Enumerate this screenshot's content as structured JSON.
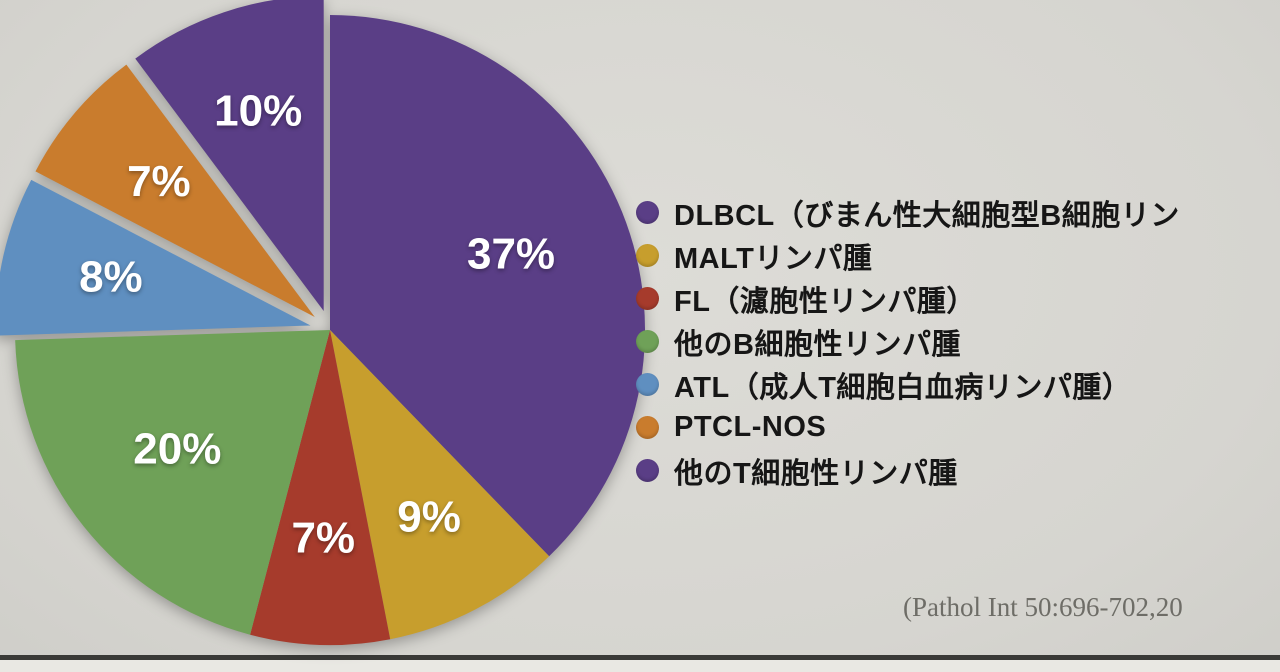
{
  "slide": {
    "background_color": "#d9d8d3"
  },
  "chart_data": {
    "type": "pie",
    "title": "",
    "categories": [
      "DLBCL（びまん性大細胞型B細胞リン",
      "MALTリンパ腫",
      "FL（濾胞性リンパ腫）",
      "他のB細胞性リンパ腫",
      "ATL（成人T細胞白血病リンパ腫）",
      "PTCL-NOS",
      "他のT細胞性リンパ腫"
    ],
    "ids": [
      "dlbcl",
      "malt",
      "fl",
      "other-b-cell",
      "atl",
      "ptcl-nos",
      "other-t-cell"
    ],
    "values": [
      37,
      9,
      7,
      20,
      8,
      7,
      10
    ],
    "percent_labels": [
      "37%",
      "9%",
      "7%",
      "20%",
      "8%",
      "7%",
      "10%"
    ],
    "colors": [
      "#5a3e86",
      "#c79e2d",
      "#a63b2c",
      "#6fa158",
      "#5f8fc0",
      "#c97c2d",
      "#5a3e86"
    ],
    "exploded": [
      false,
      false,
      false,
      false,
      true,
      true,
      true
    ],
    "start_angle_deg": 0,
    "direction": "clockwise",
    "legend_position": "right",
    "grid": false
  },
  "citation": {
    "text": "(Pathol Int 50:696-702,20"
  }
}
